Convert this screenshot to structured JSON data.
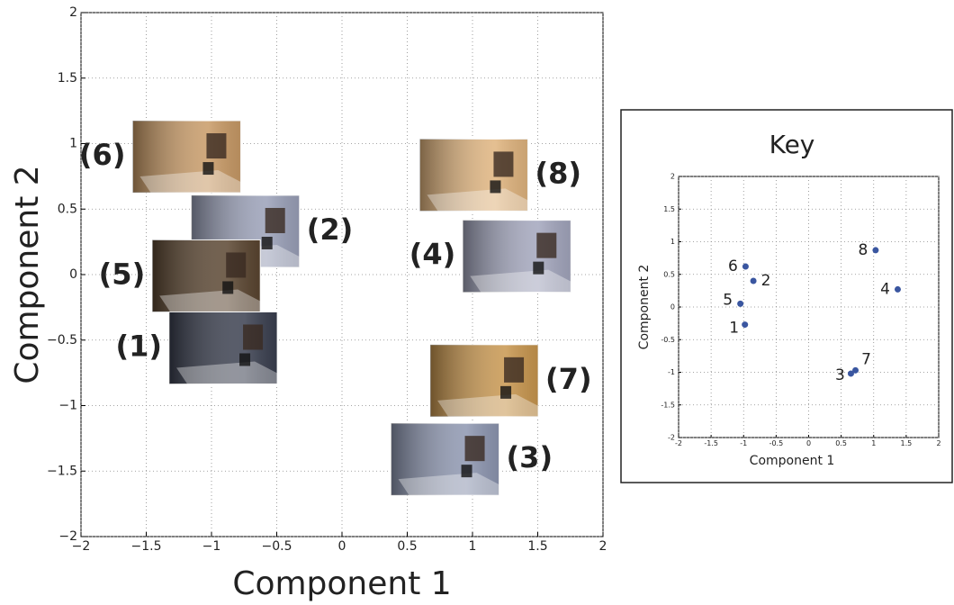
{
  "chart_data": [
    {
      "type": "image-scatter",
      "xlabel": "Component 1",
      "ylabel": "Component 2",
      "labels": [
        "(1)",
        "(2)",
        "(3)",
        "(4)",
        "(5)",
        "(6)",
        "(7)",
        "(8)"
      ],
      "x": [
        -0.91,
        -0.74,
        0.79,
        1.34,
        -1.04,
        -1.19,
        1.09,
        1.01
      ],
      "y": [
        -0.56,
        0.33,
        -1.41,
        0.14,
        -0.01,
        0.9,
        -0.81,
        0.76
      ],
      "colors": [
        "#3a3f4f",
        "#9aa0b8",
        "#8d96b0",
        "#a3a6bd",
        "#5a4530",
        "#c89a66",
        "#c8964e",
        "#e0b47e"
      ],
      "xlim": [
        -2,
        2
      ],
      "ylim": [
        -2,
        2
      ],
      "xticks": [
        {
          "value": -2,
          "label": "−2"
        },
        {
          "value": -1.5,
          "label": "−1.5"
        },
        {
          "value": -1,
          "label": "−1"
        },
        {
          "value": -0.5,
          "label": "−0.5"
        },
        0,
        0.5,
        1,
        1.5,
        2
      ],
      "yticks": [
        {
          "value": -2,
          "label": "−2"
        },
        {
          "value": -1.5,
          "label": "−1.5"
        },
        {
          "value": -1,
          "label": "−1"
        },
        {
          "value": -0.5,
          "label": "−0.5"
        },
        0,
        0.5,
        1,
        1.5,
        2
      ],
      "grid": true
    },
    {
      "type": "scatter",
      "title": "Key",
      "xlabel": "Component 1",
      "ylabel": "Component 2",
      "labels": [
        "1",
        "2",
        "3",
        "4",
        "5",
        "6",
        "7",
        "8"
      ],
      "x": [
        -0.98,
        -0.85,
        0.65,
        1.37,
        -1.05,
        -0.97,
        0.72,
        1.03
      ],
      "y": [
        -0.27,
        0.4,
        -1.02,
        0.27,
        0.05,
        0.62,
        -0.97,
        0.87
      ],
      "color": "#3a56a0",
      "xlim": [
        -2,
        2
      ],
      "ylim": [
        -2,
        2
      ],
      "xticks": [
        -2,
        -1.5,
        -1,
        -0.5,
        0,
        0.5,
        1,
        1.5,
        2
      ],
      "yticks": [
        -2,
        -1.5,
        -1,
        -0.5,
        0,
        0.5,
        1,
        1.5,
        2
      ],
      "grid": true
    }
  ]
}
